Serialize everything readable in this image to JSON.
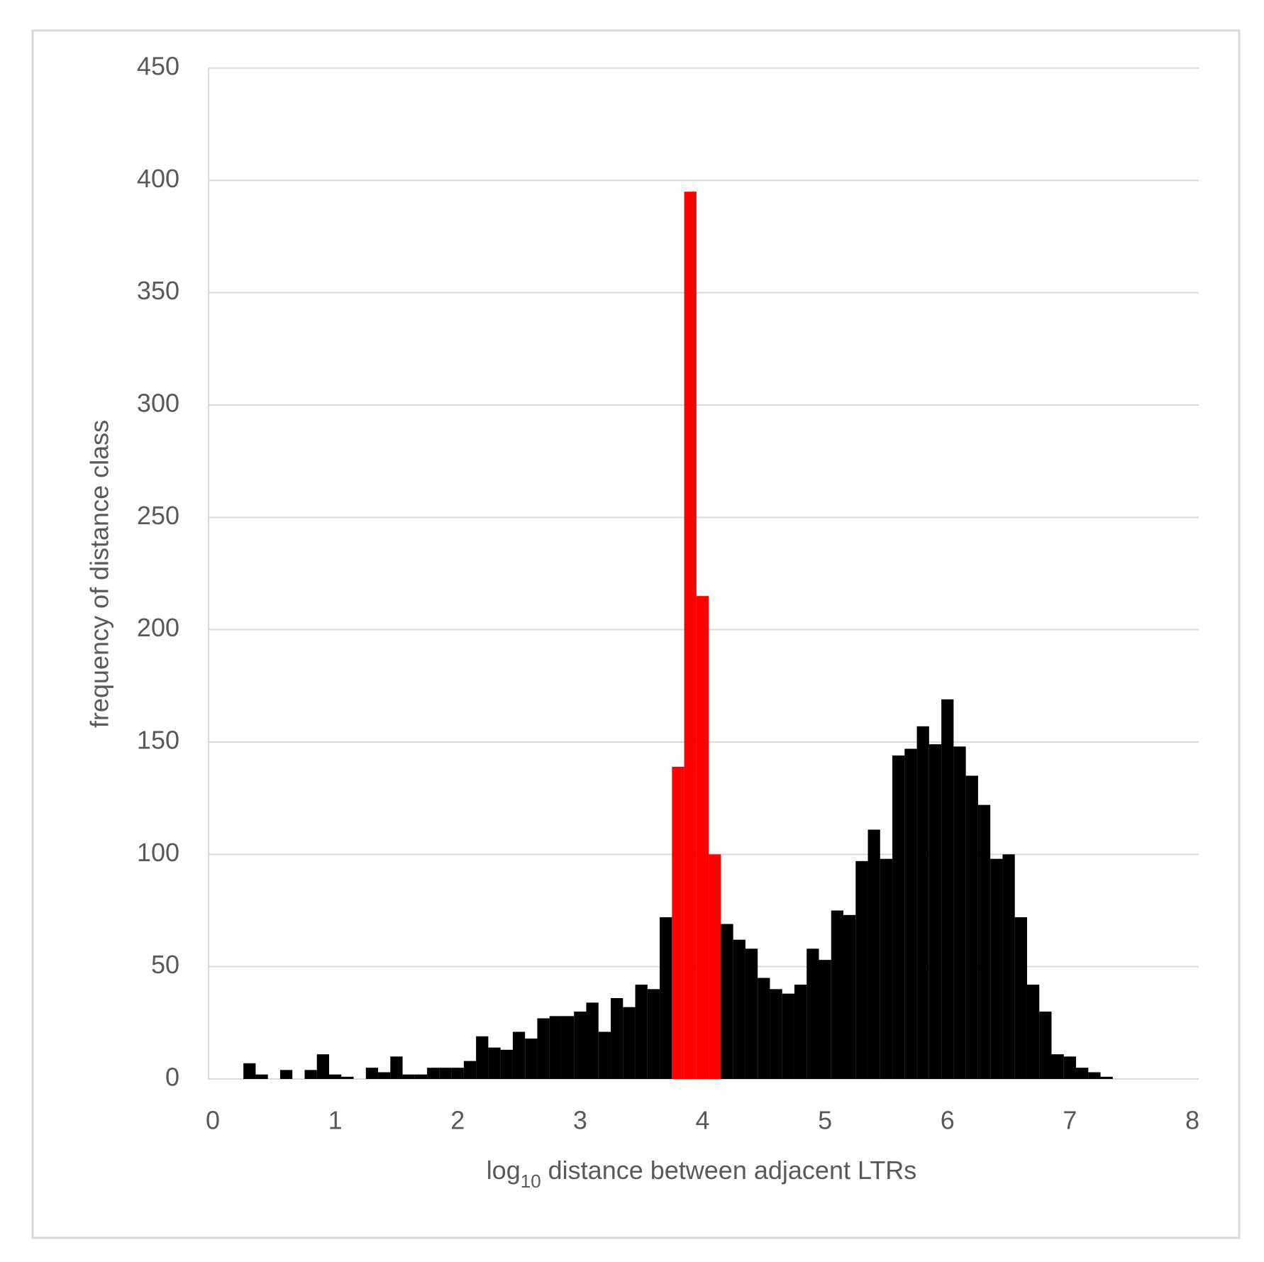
{
  "chart_data": {
    "type": "histogram",
    "xlabel": "log",
    "xlabel_sub": "10",
    "xlabel_rest": " distance between adjacent LTRs",
    "ylabel": "frequency of distance class",
    "bins": [
      0.25,
      0.35,
      0.45,
      0.55,
      0.65,
      0.75,
      0.85,
      0.95,
      1.05,
      1.15,
      1.25,
      1.35,
      1.45,
      1.55,
      1.65,
      1.75,
      1.85,
      1.95,
      2.05,
      2.15,
      2.25,
      2.35,
      2.45,
      2.55,
      2.65,
      2.75,
      2.85,
      2.95,
      3.05,
      3.15,
      3.25,
      3.35,
      3.45,
      3.55,
      3.65,
      3.75,
      3.85,
      3.95,
      4.05,
      4.15,
      4.25,
      4.35,
      4.45,
      4.55,
      4.65,
      4.75,
      4.85,
      4.95,
      5.05,
      5.15,
      5.25,
      5.35,
      5.45,
      5.55,
      5.65,
      5.75,
      5.85,
      5.95,
      6.05,
      6.15,
      6.25,
      6.35,
      6.45,
      6.55,
      6.65,
      6.75,
      6.85,
      6.95,
      7.05,
      7.15,
      7.25,
      7.35
    ],
    "values": [
      7,
      2,
      0,
      4,
      0,
      4,
      11,
      2,
      1,
      0,
      5,
      3,
      10,
      2,
      2,
      5,
      5,
      5,
      8,
      19,
      14,
      13,
      21,
      18,
      27,
      28,
      28,
      30,
      34,
      21,
      36,
      32,
      42,
      40,
      72,
      139,
      395,
      215,
      100,
      69,
      62,
      58,
      45,
      40,
      38,
      42,
      58,
      53,
      75,
      73,
      97,
      111,
      98,
      144,
      147,
      157,
      149,
      169,
      148,
      135,
      122,
      98,
      100,
      72,
      42,
      30,
      11,
      10,
      5,
      3,
      1
    ],
    "colors": [
      "#000000",
      "#000000",
      "#000000",
      "#000000",
      "#000000",
      "#000000",
      "#000000",
      "#000000",
      "#000000",
      "#000000",
      "#000000",
      "#000000",
      "#000000",
      "#000000",
      "#000000",
      "#000000",
      "#000000",
      "#000000",
      "#000000",
      "#000000",
      "#000000",
      "#000000",
      "#000000",
      "#000000",
      "#000000",
      "#000000",
      "#000000",
      "#000000",
      "#000000",
      "#000000",
      "#000000",
      "#000000",
      "#000000",
      "#000000",
      "#000000",
      "#ff0000",
      "#ff0000",
      "#ff0000",
      "#ff0000",
      "#000000",
      "#000000",
      "#000000",
      "#000000",
      "#000000",
      "#000000",
      "#000000",
      "#000000",
      "#000000",
      "#000000",
      "#000000",
      "#000000",
      "#000000",
      "#000000",
      "#000000",
      "#000000",
      "#000000",
      "#000000",
      "#000000",
      "#000000",
      "#000000",
      "#000000",
      "#000000",
      "#000000",
      "#000000",
      "#000000",
      "#000000",
      "#000000",
      "#000000",
      "#000000",
      "#000000",
      "#000000"
    ],
    "xlim": [
      0,
      8
    ],
    "xticks": [
      0,
      1,
      2,
      3,
      4,
      5,
      6,
      7,
      8
    ],
    "ylim": [
      0,
      450
    ],
    "yticks": [
      0,
      50,
      100,
      150,
      200,
      250,
      300,
      350,
      400,
      450
    ],
    "grid": true
  }
}
